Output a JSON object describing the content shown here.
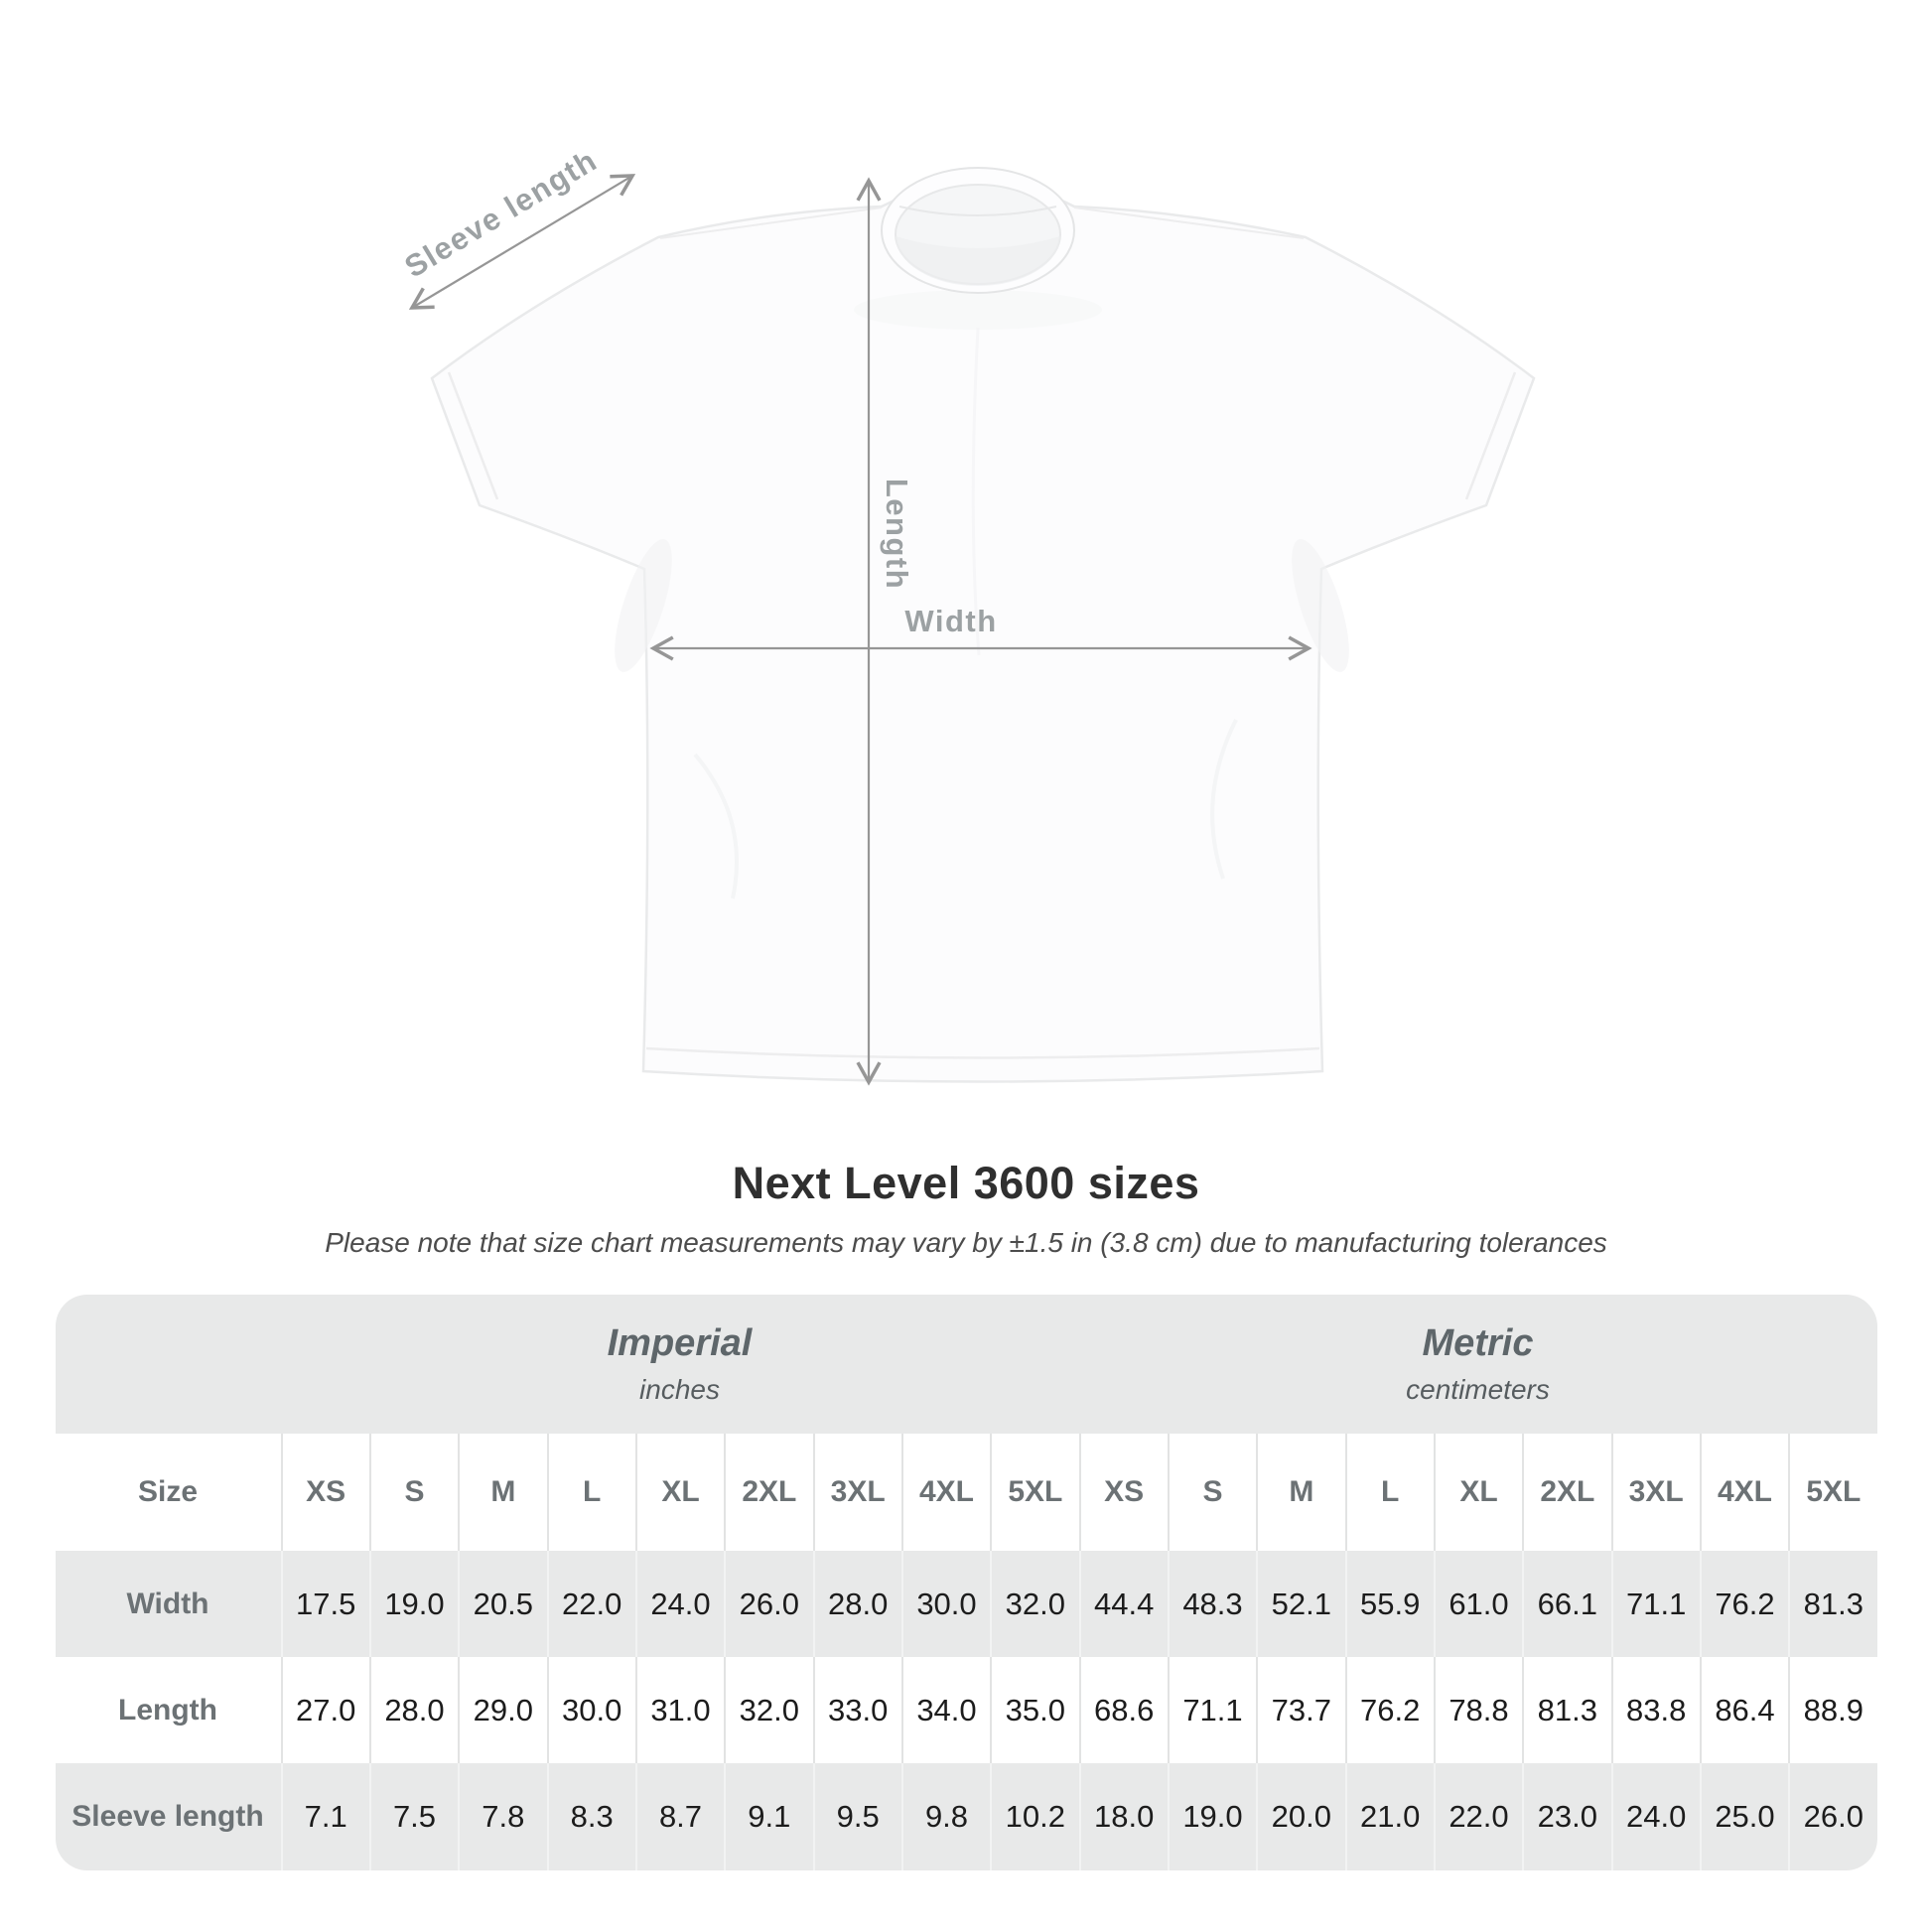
{
  "shirt_diagram": {
    "sleeve_length_label": "Sleeve length",
    "length_label": "Length",
    "width_label": "Width",
    "annotation_color": "#969696",
    "label_color": "#9ca1a3"
  },
  "title": "Next Level 3600 sizes",
  "subtitle": "Please note that size chart measurements may vary by ±1.5 in (3.8 cm) due to manufacturing tolerances",
  "size_table": {
    "unit_groups": [
      {
        "name": "Imperial",
        "unit": "inches"
      },
      {
        "name": "Metric",
        "unit": "centimeters"
      }
    ],
    "size_column_header": "Size",
    "size_headers": [
      "XS",
      "S",
      "M",
      "L",
      "XL",
      "2XL",
      "3XL",
      "4XL",
      "5XL",
      "XS",
      "S",
      "M",
      "L",
      "XL",
      "2XL",
      "3XL",
      "4XL",
      "5XL"
    ],
    "rows": [
      {
        "label": "Width",
        "values": [
          "17.5",
          "19.0",
          "20.5",
          "22.0",
          "24.0",
          "26.0",
          "28.0",
          "30.0",
          "32.0",
          "44.4",
          "48.3",
          "52.1",
          "55.9",
          "61.0",
          "66.1",
          "71.1",
          "76.2",
          "81.3"
        ]
      },
      {
        "label": "Length",
        "values": [
          "27.0",
          "28.0",
          "29.0",
          "30.0",
          "31.0",
          "32.0",
          "33.0",
          "34.0",
          "35.0",
          "68.6",
          "71.1",
          "73.7",
          "76.2",
          "78.8",
          "81.3",
          "83.8",
          "86.4",
          "88.9"
        ]
      },
      {
        "label": "Sleeve length",
        "values": [
          "7.1",
          "7.5",
          "7.8",
          "8.3",
          "8.7",
          "9.1",
          "9.5",
          "9.8",
          "10.2",
          "18.0",
          "19.0",
          "20.0",
          "21.0",
          "22.0",
          "23.0",
          "24.0",
          "25.0",
          "26.0"
        ]
      }
    ],
    "table_colors": {
      "band": "#e8e9e9",
      "row_alt": "#e8e9e9",
      "header_text": "#6c7275",
      "value_text": "#1c1c1c"
    }
  }
}
